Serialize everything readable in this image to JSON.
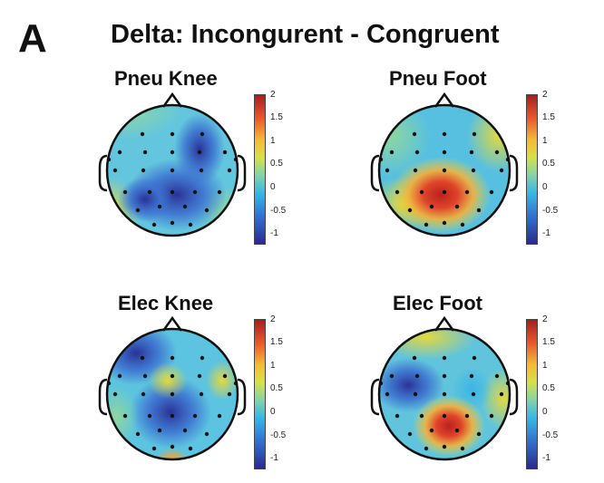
{
  "panel_letter": "A",
  "main_title": "Delta: Incongurent - Congruent",
  "colorbar_ticks": [
    "2",
    "1.5",
    "1",
    "0.5",
    "0",
    "-0.5",
    "-1"
  ],
  "colormap": [
    "#2c2a8c",
    "#2f6fd0",
    "#36b7e8",
    "#83d3a8",
    "#d6e14a",
    "#f5b93a",
    "#ea5a2a",
    "#a51f22"
  ],
  "maps": [
    {
      "title": "Pneu Knee"
    },
    {
      "title": "Pneu Foot"
    },
    {
      "title": "Elec Knee"
    },
    {
      "title": "Elec Foot"
    }
  ]
}
